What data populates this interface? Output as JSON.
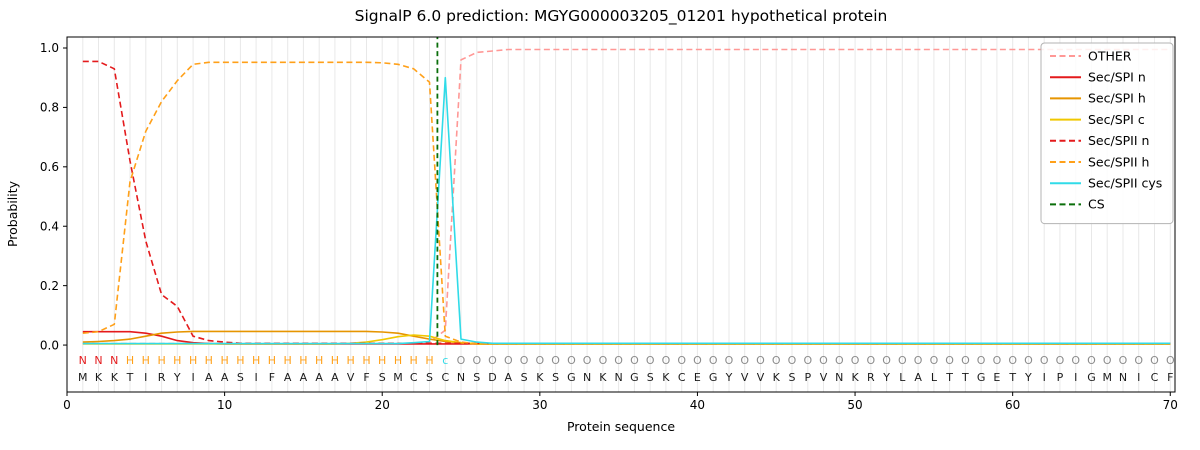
{
  "chart_data": {
    "type": "line",
    "title": "SignalP 6.0 prediction: MGYG000003205_01201 hypothetical protein",
    "xlabel": "Protein sequence",
    "ylabel": "Probability",
    "xlim": [
      0,
      70.3
    ],
    "ylim": [
      -0.158,
      1.037
    ],
    "x_range": [
      1,
      70
    ],
    "xticks": [
      0,
      10,
      20,
      30,
      40,
      50,
      60,
      70
    ],
    "yticks": [
      0.0,
      0.2,
      0.4,
      0.6,
      0.8,
      1.0
    ],
    "grid": "vertical-per-residue",
    "legend_position": "upper-right",
    "style": {
      "grid_color": "#e8e8e8",
      "axis_color": "#000000",
      "legend_border_color": "#b3b3b3"
    },
    "series": [
      {
        "name": "OTHER",
        "color": "#ff9896",
        "dash": "dashed",
        "values": [
          0.005,
          0.005,
          0.005,
          0.005,
          0.005,
          0.005,
          0.005,
          0.005,
          0.005,
          0.005,
          0.005,
          0.005,
          0.005,
          0.005,
          0.005,
          0.005,
          0.005,
          0.005,
          0.005,
          0.005,
          0.005,
          0.005,
          0.01,
          0.05,
          0.96,
          0.985,
          0.99,
          0.995,
          0.995,
          0.995,
          0.995,
          0.995,
          0.995,
          0.995,
          0.995,
          0.995,
          0.995,
          0.995,
          0.995,
          0.995,
          0.995,
          0.995,
          0.995,
          0.995,
          0.995,
          0.995,
          0.995,
          0.995,
          0.995,
          0.995,
          0.995,
          0.995,
          0.995,
          0.995,
          0.995,
          0.995,
          0.995,
          0.995,
          0.995,
          0.995,
          0.995,
          0.995,
          0.995,
          0.995,
          0.995,
          0.995,
          0.995,
          0.995,
          0.995,
          0.995
        ]
      },
      {
        "name": "Sec/SPI n",
        "color": "#e41a1c",
        "dash": "solid",
        "values": [
          0.045,
          0.045,
          0.045,
          0.045,
          0.04,
          0.03,
          0.015,
          0.008,
          0.005,
          0.004,
          0.004,
          0.004,
          0.004,
          0.004,
          0.004,
          0.004,
          0.004,
          0.004,
          0.004,
          0.004,
          0.004,
          0.004,
          0.004,
          0.004,
          0.004,
          0.004,
          0.004,
          0.004,
          0.004,
          0.004,
          0.004,
          0.004,
          0.004,
          0.004,
          0.004,
          0.004,
          0.004,
          0.004,
          0.004,
          0.004,
          0.004,
          0.004,
          0.004,
          0.004,
          0.004,
          0.004,
          0.004,
          0.004,
          0.004,
          0.004,
          0.004,
          0.004,
          0.004,
          0.004,
          0.004,
          0.004,
          0.004,
          0.004,
          0.004,
          0.004,
          0.004,
          0.004,
          0.004,
          0.004,
          0.004,
          0.004,
          0.004,
          0.004,
          0.004,
          0.004
        ]
      },
      {
        "name": "Sec/SPI h",
        "color": "#e69500",
        "dash": "solid",
        "values": [
          0.01,
          0.012,
          0.015,
          0.02,
          0.03,
          0.04,
          0.044,
          0.046,
          0.046,
          0.046,
          0.046,
          0.046,
          0.046,
          0.046,
          0.046,
          0.046,
          0.046,
          0.046,
          0.046,
          0.044,
          0.04,
          0.03,
          0.02,
          0.012,
          0.008,
          0.004,
          0.004,
          0.004,
          0.004,
          0.004,
          0.004,
          0.004,
          0.004,
          0.004,
          0.004,
          0.004,
          0.004,
          0.004,
          0.004,
          0.004,
          0.004,
          0.004,
          0.004,
          0.004,
          0.004,
          0.004,
          0.004,
          0.004,
          0.004,
          0.004,
          0.004,
          0.004,
          0.004,
          0.004,
          0.004,
          0.004,
          0.004,
          0.004,
          0.004,
          0.004,
          0.004,
          0.004,
          0.004,
          0.004,
          0.004,
          0.004,
          0.004,
          0.004,
          0.004,
          0.004
        ]
      },
      {
        "name": "Sec/SPI c",
        "color": "#f0c800",
        "dash": "solid",
        "values": [
          0.004,
          0.004,
          0.004,
          0.004,
          0.004,
          0.004,
          0.004,
          0.004,
          0.004,
          0.004,
          0.004,
          0.004,
          0.004,
          0.004,
          0.004,
          0.004,
          0.004,
          0.006,
          0.01,
          0.018,
          0.028,
          0.034,
          0.03,
          0.015,
          0.008,
          0.004,
          0.004,
          0.004,
          0.004,
          0.004,
          0.004,
          0.004,
          0.004,
          0.004,
          0.004,
          0.004,
          0.004,
          0.004,
          0.004,
          0.004,
          0.004,
          0.004,
          0.004,
          0.004,
          0.004,
          0.004,
          0.004,
          0.004,
          0.004,
          0.004,
          0.004,
          0.004,
          0.004,
          0.004,
          0.004,
          0.004,
          0.004,
          0.004,
          0.004,
          0.004,
          0.004,
          0.004,
          0.004,
          0.004,
          0.004,
          0.004,
          0.004,
          0.004,
          0.004,
          0.004
        ]
      },
      {
        "name": "Sec/SPII n",
        "color": "#e41a1c",
        "dash": "dashed",
        "values": [
          0.955,
          0.955,
          0.93,
          0.62,
          0.35,
          0.17,
          0.13,
          0.03,
          0.015,
          0.01,
          0.006,
          0.006,
          0.006,
          0.006,
          0.006,
          0.006,
          0.006,
          0.006,
          0.006,
          0.006,
          0.006,
          0.006,
          0.006,
          0.006,
          0.006,
          0.006,
          0.006,
          0.006,
          0.006,
          0.006,
          0.006,
          0.006,
          0.006,
          0.006,
          0.006,
          0.006,
          0.006,
          0.006,
          0.006,
          0.006,
          0.006,
          0.006,
          0.006,
          0.006,
          0.006,
          0.006,
          0.006,
          0.006,
          0.006,
          0.006,
          0.006,
          0.006,
          0.006,
          0.006,
          0.006,
          0.006,
          0.006,
          0.006,
          0.006,
          0.006,
          0.006,
          0.006,
          0.006,
          0.006,
          0.006,
          0.006,
          0.006,
          0.006,
          0.006,
          0.006
        ]
      },
      {
        "name": "Sec/SPII h",
        "color": "#ffa019",
        "dash": "dashed",
        "values": [
          0.04,
          0.045,
          0.07,
          0.55,
          0.72,
          0.82,
          0.89,
          0.945,
          0.952,
          0.952,
          0.952,
          0.952,
          0.952,
          0.952,
          0.952,
          0.952,
          0.952,
          0.952,
          0.952,
          0.95,
          0.945,
          0.93,
          0.885,
          0.03,
          0.01,
          0.005,
          0.005,
          0.005,
          0.005,
          0.005,
          0.005,
          0.005,
          0.005,
          0.005,
          0.005,
          0.005,
          0.005,
          0.005,
          0.005,
          0.005,
          0.005,
          0.005,
          0.005,
          0.005,
          0.005,
          0.005,
          0.005,
          0.005,
          0.005,
          0.005,
          0.005,
          0.005,
          0.005,
          0.005,
          0.005,
          0.005,
          0.005,
          0.005,
          0.005,
          0.005,
          0.005,
          0.005,
          0.005,
          0.005,
          0.005,
          0.005,
          0.005,
          0.005,
          0.005,
          0.005
        ]
      },
      {
        "name": "Sec/SPII cys",
        "color": "#30dbe8",
        "dash": "solid",
        "values": [
          0.005,
          0.005,
          0.005,
          0.005,
          0.005,
          0.005,
          0.005,
          0.005,
          0.005,
          0.005,
          0.005,
          0.005,
          0.005,
          0.005,
          0.005,
          0.005,
          0.005,
          0.005,
          0.005,
          0.005,
          0.005,
          0.008,
          0.012,
          0.9,
          0.02,
          0.01,
          0.006,
          0.006,
          0.006,
          0.006,
          0.006,
          0.006,
          0.006,
          0.006,
          0.006,
          0.006,
          0.006,
          0.006,
          0.006,
          0.006,
          0.006,
          0.006,
          0.006,
          0.006,
          0.006,
          0.006,
          0.006,
          0.006,
          0.006,
          0.006,
          0.006,
          0.006,
          0.006,
          0.006,
          0.006,
          0.006,
          0.006,
          0.006,
          0.006,
          0.006,
          0.006,
          0.006,
          0.006,
          0.006,
          0.006,
          0.006,
          0.006,
          0.006,
          0.006,
          0.006
        ]
      }
    ],
    "cs_line": {
      "name": "CS",
      "x": 23.5,
      "color": "#0a6e0a",
      "dash": "dashed"
    },
    "sequence": {
      "residues": "MKKTIRYIAASIFAAAAVFSMCSCNSDASKSGNKNGSKCEGYVVKSPVNKRYLALTTGETYIPIGMNICF",
      "annotation": "NNNHHHHHHHHHHHHHHHHHHHHcOOOOOOOOOOOOOOOOOOOOOOOOOOOOOOOOOOOOOOOOOOOOOO",
      "annotation_colors": {
        "N": "#e41a1c",
        "H": "#ffa019",
        "c": "#30dbe8",
        "O": "#8c8c8c"
      },
      "residue_color": "#1a1a1a"
    }
  }
}
